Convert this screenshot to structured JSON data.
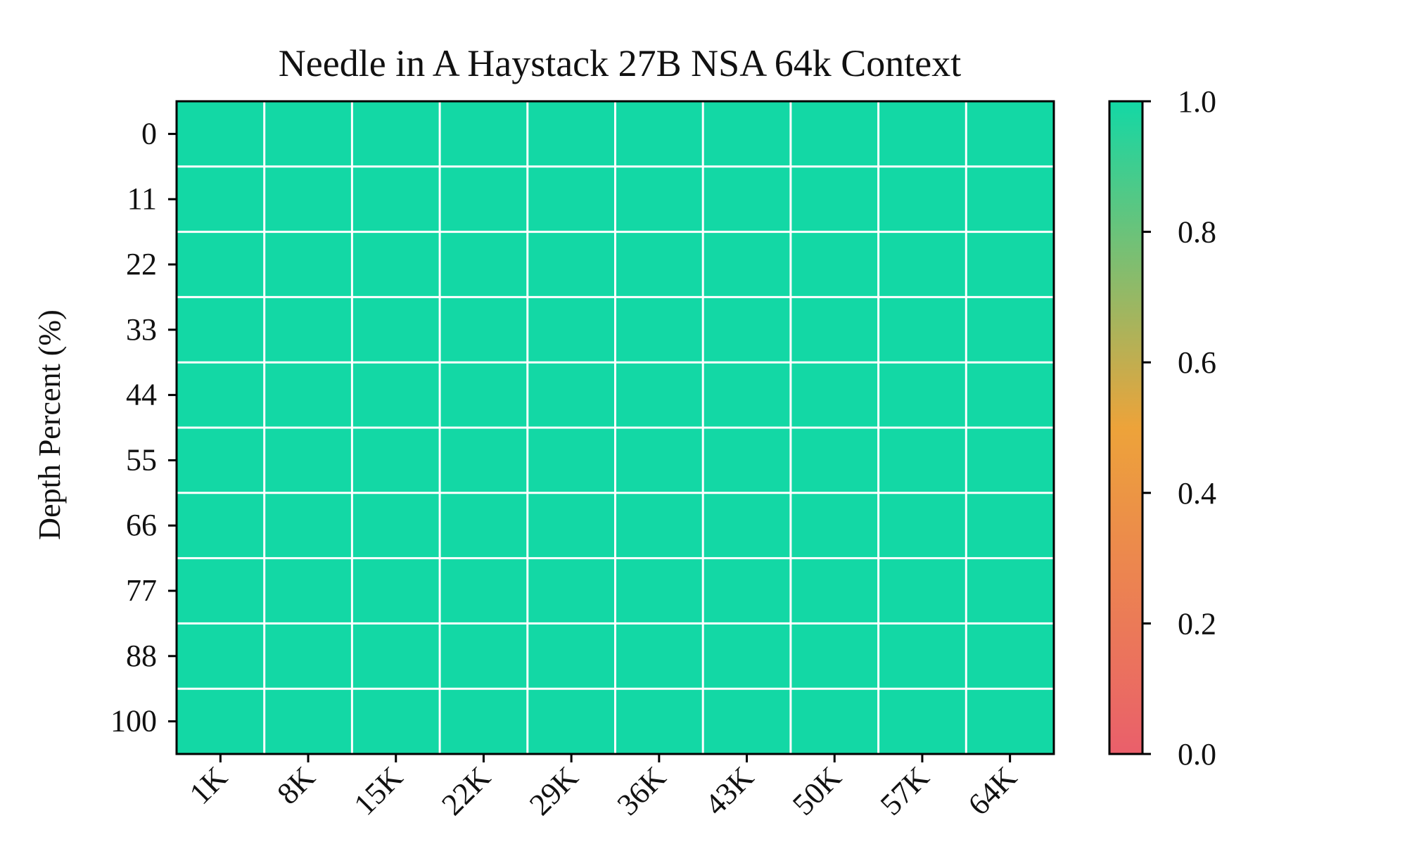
{
  "chart_data": {
    "type": "heatmap",
    "title": "Needle in A Haystack 27B NSA 64k Context",
    "xlabel": "",
    "ylabel": "Depth Percent (%)",
    "x": [
      "1K",
      "8K",
      "15K",
      "22K",
      "29K",
      "36K",
      "43K",
      "50K",
      "57K",
      "64K"
    ],
    "y": [
      "0",
      "11",
      "22",
      "33",
      "44",
      "55",
      "66",
      "77",
      "88",
      "100"
    ],
    "values": [
      [
        1,
        1,
        1,
        1,
        1,
        1,
        1,
        1,
        1,
        1
      ],
      [
        1,
        1,
        1,
        1,
        1,
        1,
        1,
        1,
        1,
        1
      ],
      [
        1,
        1,
        1,
        1,
        1,
        1,
        1,
        1,
        1,
        1
      ],
      [
        1,
        1,
        1,
        1,
        1,
        1,
        1,
        1,
        1,
        1
      ],
      [
        1,
        1,
        1,
        1,
        1,
        1,
        1,
        1,
        1,
        1
      ],
      [
        1,
        1,
        1,
        1,
        1,
        1,
        1,
        1,
        1,
        1
      ],
      [
        1,
        1,
        1,
        1,
        1,
        1,
        1,
        1,
        1,
        1
      ],
      [
        1,
        1,
        1,
        1,
        1,
        1,
        1,
        1,
        1,
        1
      ],
      [
        1,
        1,
        1,
        1,
        1,
        1,
        1,
        1,
        1,
        1
      ],
      [
        1,
        1,
        1,
        1,
        1,
        1,
        1,
        1,
        1,
        1
      ]
    ],
    "colorbar": {
      "range": [
        0.0,
        1.0
      ],
      "ticks": [
        "0.0",
        "0.2",
        "0.4",
        "0.6",
        "0.8",
        "1.0"
      ],
      "colors": [
        "#ea5f6b",
        "#eda33a",
        "#13d8a5"
      ]
    },
    "grid": true,
    "grid_color": "#ffffff"
  }
}
